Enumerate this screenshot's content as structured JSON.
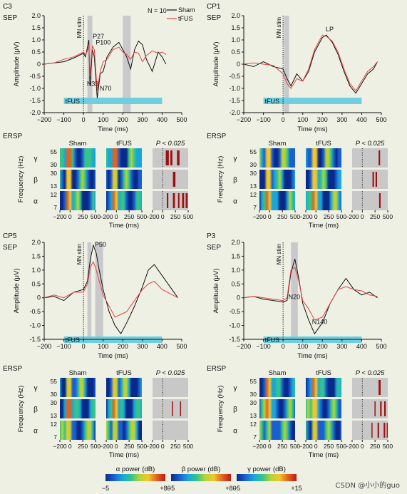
{
  "colors": {
    "background": "#eef0e4",
    "sham": "#111111",
    "tfus": "#e8413c",
    "tfus_bar": "#6fcfe0",
    "highlight": "#c9c9cc",
    "mask_bg": "#c8c8c8",
    "sig": "#a01010"
  },
  "labels": {
    "sep": "SEP",
    "ersp": "ERSP",
    "mn_stim": "MN stim",
    "tfus_bar": "tFUS",
    "y_amp": "Amplitude (μV)",
    "x_time": "Time (ms)",
    "y_freq": "Frequency (Hz)",
    "col_sham": "Sham",
    "col_tfus": "tFUS",
    "col_p": "P < 0.025",
    "bands": [
      "γ",
      "β",
      "α"
    ]
  },
  "n_label": "N = 10",
  "legend": [
    {
      "name": "Sham",
      "color": "#111111"
    },
    {
      "name": "tFUS",
      "color": "#e8413c"
    }
  ],
  "colorbars": [
    {
      "label": "α power (dB)",
      "min": "−5",
      "max": "+80"
    },
    {
      "label": "β power (dB)",
      "min": "−5",
      "max": "+80"
    },
    {
      "label": "γ power (dB)",
      "min": "−5",
      "max": "+15"
    }
  ],
  "watermark": "CSDN @小小的guo",
  "chart_data": [
    {
      "type": "line",
      "channel": "C3",
      "title": "C3",
      "xlabel": "Time (ms)",
      "ylabel": "Amplitude (μV)",
      "xlim": [
        -200,
        500
      ],
      "ylim": [
        -2,
        2
      ],
      "xticks": [
        -200,
        -100,
        0,
        100,
        200,
        300,
        400,
        500
      ],
      "yticks": [
        -2.0,
        -1.5,
        -1.0,
        -0.5,
        0,
        0.5,
        1.0,
        1.5,
        2.0
      ],
      "highlights": [
        [
          20,
          45
        ],
        [
          200,
          240
        ]
      ],
      "tfus_bar": [
        -100,
        400
      ],
      "show_n": true,
      "peaks": [
        {
          "label": "P27",
          "x": 40,
          "y": 1.0
        },
        {
          "label": "P100",
          "x": 55,
          "y": 0.75
        },
        {
          "label": "N33",
          "x": 10,
          "y": -0.95
        },
        {
          "label": "N70",
          "x": 75,
          "y": -1.15
        }
      ],
      "series": [
        {
          "name": "Sham",
          "x": [
            -200,
            -150,
            -100,
            -50,
            0,
            10,
            20,
            27,
            33,
            45,
            55,
            70,
            85,
            100,
            120,
            150,
            180,
            200,
            220,
            240,
            260,
            280,
            300,
            320,
            350,
            380,
            400,
            420
          ],
          "values": [
            0.0,
            0.05,
            0.1,
            0.25,
            0.45,
            0.3,
            0.7,
            1.0,
            -0.9,
            0.6,
            0.3,
            -1.4,
            -0.4,
            -0.3,
            0.3,
            0.7,
            0.9,
            0.6,
            0.3,
            -0.2,
            0.6,
            0.95,
            0.8,
            0.2,
            -0.3,
            0.5,
            0.3,
            0.0
          ]
        },
        {
          "name": "tFUS",
          "x": [
            -200,
            -150,
            -100,
            -50,
            0,
            10,
            20,
            27,
            33,
            45,
            55,
            70,
            85,
            100,
            120,
            150,
            180,
            200,
            220,
            240,
            260,
            280,
            300,
            320,
            350,
            380,
            400,
            420
          ],
          "values": [
            0.0,
            0.05,
            0.2,
            0.3,
            0.5,
            0.4,
            0.55,
            0.8,
            -0.5,
            0.75,
            0.6,
            -1.1,
            -0.3,
            0.1,
            0.2,
            0.6,
            0.7,
            0.5,
            0.4,
            0.2,
            0.5,
            0.45,
            0.1,
            0.35,
            0.55,
            0.45,
            0.5,
            0.4
          ]
        }
      ]
    },
    {
      "type": "line",
      "channel": "CP1",
      "title": "CP1",
      "xlabel": "Time (ms)",
      "ylabel": "Amplitude (μV)",
      "xlim": [
        -200,
        500
      ],
      "ylim": [
        -2,
        2
      ],
      "xticks": [
        -200,
        -100,
        0,
        100,
        200,
        300,
        400,
        500
      ],
      "yticks": [
        -2.0,
        -1.5,
        -1.0,
        -0.5,
        0,
        0.5,
        1.0,
        1.5,
        2.0
      ],
      "highlights": [
        [
          5,
          30
        ]
      ],
      "tfus_bar": [
        -100,
        400
      ],
      "show_n": false,
      "peaks": [
        {
          "label": "LP",
          "x": 210,
          "y": 1.3
        }
      ],
      "series": [
        {
          "name": "Sham",
          "x": [
            -200,
            -150,
            -100,
            -50,
            0,
            20,
            40,
            70,
            100,
            130,
            160,
            200,
            220,
            250,
            280,
            310,
            340,
            370,
            400,
            430,
            460,
            480
          ],
          "values": [
            0.0,
            -0.1,
            0.1,
            -0.1,
            -0.2,
            -0.6,
            -0.9,
            -0.4,
            -0.7,
            -0.3,
            0.5,
            1.1,
            1.2,
            0.9,
            0.4,
            -0.3,
            -0.9,
            -1.2,
            -0.8,
            -0.4,
            -0.2,
            0.1
          ]
        },
        {
          "name": "tFUS",
          "x": [
            -200,
            -150,
            -100,
            -50,
            0,
            20,
            40,
            70,
            100,
            130,
            160,
            200,
            220,
            250,
            280,
            310,
            340,
            370,
            400,
            430,
            460,
            480
          ],
          "values": [
            0.0,
            0.05,
            0.0,
            -0.05,
            -0.4,
            -0.8,
            -1.0,
            -0.6,
            -0.7,
            -0.2,
            0.6,
            1.2,
            1.15,
            0.95,
            0.5,
            -0.2,
            -0.8,
            -1.1,
            -0.7,
            -0.3,
            -0.1,
            0.1
          ]
        }
      ]
    },
    {
      "type": "line",
      "channel": "CP5",
      "title": "CP5",
      "xlabel": "Time (ms)",
      "ylabel": "Amplitude (μV)",
      "xlim": [
        -200,
        500
      ],
      "ylim": [
        -1.5,
        2
      ],
      "xticks": [
        -200,
        -100,
        0,
        100,
        200,
        300,
        400,
        500
      ],
      "yticks": [
        -1.5,
        -1.0,
        -0.5,
        0,
        0.5,
        1.0,
        1.5,
        2.0
      ],
      "highlights": [
        [
          20,
          40
        ],
        [
          60,
          100
        ]
      ],
      "tfus_bar": [
        -100,
        400
      ],
      "show_n": false,
      "peaks": [
        {
          "label": "P50",
          "x": 50,
          "y": 1.8
        }
      ],
      "series": [
        {
          "name": "Sham",
          "x": [
            -200,
            -150,
            -100,
            -50,
            0,
            20,
            35,
            50,
            65,
            80,
            100,
            130,
            160,
            190,
            220,
            260,
            300,
            330,
            360,
            400,
            440,
            480
          ],
          "values": [
            0.0,
            0.05,
            -0.1,
            0.2,
            0.3,
            0.6,
            1.4,
            1.9,
            1.6,
            1.0,
            0.3,
            -0.5,
            -1.0,
            -1.3,
            -0.9,
            -0.3,
            0.4,
            1.0,
            1.2,
            0.8,
            0.4,
            0.0
          ]
        },
        {
          "name": "tFUS",
          "x": [
            -200,
            -150,
            -100,
            -50,
            0,
            20,
            35,
            50,
            65,
            80,
            100,
            130,
            160,
            190,
            220,
            260,
            300,
            330,
            360,
            400,
            440,
            480
          ],
          "values": [
            0.0,
            0.1,
            0.0,
            0.2,
            0.2,
            0.5,
            1.1,
            1.3,
            1.0,
            0.6,
            0.1,
            -0.3,
            -0.7,
            -0.6,
            -0.5,
            -0.1,
            0.3,
            0.5,
            0.6,
            0.3,
            0.15,
            0.0
          ]
        }
      ]
    },
    {
      "type": "line",
      "channel": "P3",
      "title": "P3",
      "xlabel": "Time (ms)",
      "ylabel": "Amplitude (μV)",
      "xlim": [
        -200,
        500
      ],
      "ylim": [
        -1.5,
        2
      ],
      "xticks": [
        -200,
        -100,
        0,
        100,
        200,
        300,
        400,
        500
      ],
      "yticks": [
        -1.5,
        -1.0,
        -0.5,
        0,
        0.5,
        1.0,
        1.5,
        2.0
      ],
      "highlights": [
        [
          40,
          75
        ]
      ],
      "tfus_bar": [
        -100,
        400
      ],
      "show_n": false,
      "peaks": [
        {
          "label": "N20",
          "x": 20,
          "y": -0.1
        },
        {
          "label": "N140",
          "x": 140,
          "y": -1.0
        }
      ],
      "series": [
        {
          "name": "Sham",
          "x": [
            -200,
            -150,
            -100,
            -50,
            0,
            20,
            40,
            60,
            80,
            100,
            130,
            160,
            200,
            240,
            280,
            320,
            360,
            400,
            440,
            480
          ],
          "values": [
            0.0,
            0.05,
            -0.05,
            -0.1,
            -0.15,
            -0.1,
            0.9,
            1.4,
            0.7,
            -0.2,
            -0.8,
            -1.3,
            -0.9,
            -0.2,
            0.3,
            0.7,
            0.3,
            0.1,
            0.2,
            0.0
          ]
        },
        {
          "name": "tFUS",
          "x": [
            -200,
            -150,
            -100,
            -50,
            0,
            20,
            40,
            60,
            80,
            100,
            130,
            160,
            200,
            240,
            280,
            320,
            360,
            400,
            440,
            480
          ],
          "values": [
            0.0,
            0.05,
            0.0,
            -0.05,
            -0.1,
            0.0,
            1.0,
            1.1,
            0.6,
            -0.1,
            -0.4,
            -0.8,
            -0.7,
            -0.2,
            0.3,
            0.4,
            0.3,
            0.25,
            0.1,
            0.05
          ]
        }
      ]
    }
  ],
  "ersp": {
    "xticks": [
      -200,
      0,
      250,
      500
    ],
    "xlim": [
      -200,
      500
    ],
    "yticks": {
      "γ": [
        55,
        30
      ],
      "β": [
        30,
        13
      ],
      "α": [
        12,
        7
      ]
    },
    "sig_blobs": {
      "C3": {
        "γ": [
          [
            60,
            120
          ],
          [
            150,
            190
          ],
          [
            280,
            330
          ]
        ],
        "β": [
          [
            200,
            250
          ]
        ],
        "α": [
          [
            80,
            110
          ],
          [
            200,
            240
          ],
          [
            300,
            330
          ],
          [
            380,
            420
          ],
          [
            450,
            490
          ]
        ]
      },
      "CP1": {
        "γ": [
          [
            320,
            350
          ]
        ],
        "β": [
          [
            200,
            230
          ],
          [
            260,
            290
          ]
        ],
        "α": [
          [
            330,
            360
          ]
        ]
      },
      "CP5": {
        "γ": [],
        "β": [
          [
            180,
            200
          ],
          [
            340,
            360
          ]
        ],
        "α": []
      },
      "P3": {
        "γ": [
          [
            320,
            360
          ]
        ],
        "β": [
          [
            240,
            260
          ],
          [
            350,
            380
          ],
          [
            430,
            460
          ]
        ],
        "α": [
          [
            180,
            200
          ],
          [
            300,
            330
          ],
          [
            420,
            450
          ],
          [
            480,
            500
          ]
        ]
      }
    }
  }
}
